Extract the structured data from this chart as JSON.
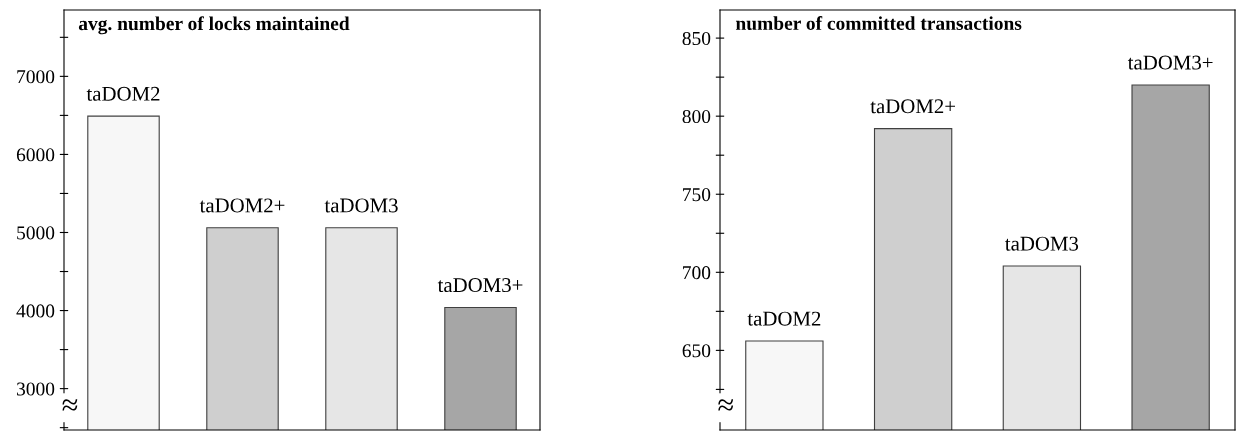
{
  "chart_data": [
    {
      "type": "bar",
      "title": "avg. number of locks maintained",
      "categories": [
        "taDOM2",
        "taDOM2+",
        "taDOM3",
        "taDOM3+"
      ],
      "values": [
        6490,
        5060,
        5060,
        4040
      ],
      "colors": [
        "#f7f7f7",
        "#cfcfcf",
        "#e6e6e6",
        "#a6a6a6"
      ],
      "ylim": [
        2470,
        7850
      ],
      "yticks": [
        {
          "value": 2500,
          "label": null
        },
        3000,
        {
          "value": 3500,
          "label": null
        },
        4000,
        {
          "value": 4500,
          "label": null
        },
        5000,
        {
          "value": 5500,
          "label": null
        },
        6000,
        {
          "value": 6500,
          "label": null
        },
        7000,
        {
          "value": 7500,
          "label": null
        }
      ],
      "tick_labels": "y",
      "annotations": [
        "≈"
      ],
      "grid": false,
      "legend": false
    },
    {
      "type": "bar",
      "title": "number of committed transactions",
      "categories": [
        "taDOM2",
        "taDOM2+",
        "taDOM3",
        "taDOM3+"
      ],
      "values": [
        656,
        792,
        704,
        820
      ],
      "colors": [
        "#f7f7f7",
        "#cfcfcf",
        "#e6e6e6",
        "#a6a6a6"
      ],
      "ylim": [
        599,
        868
      ],
      "yticks": [
        {
          "value": 625,
          "label": null
        },
        650,
        {
          "value": 675,
          "label": null
        },
        700,
        {
          "value": 725,
          "label": null
        },
        750,
        {
          "value": 775,
          "label": null
        },
        800,
        {
          "value": 825,
          "label": null
        },
        850
      ],
      "tick_labels": "y",
      "annotations": [
        "≈"
      ],
      "grid": false,
      "legend": false
    }
  ]
}
